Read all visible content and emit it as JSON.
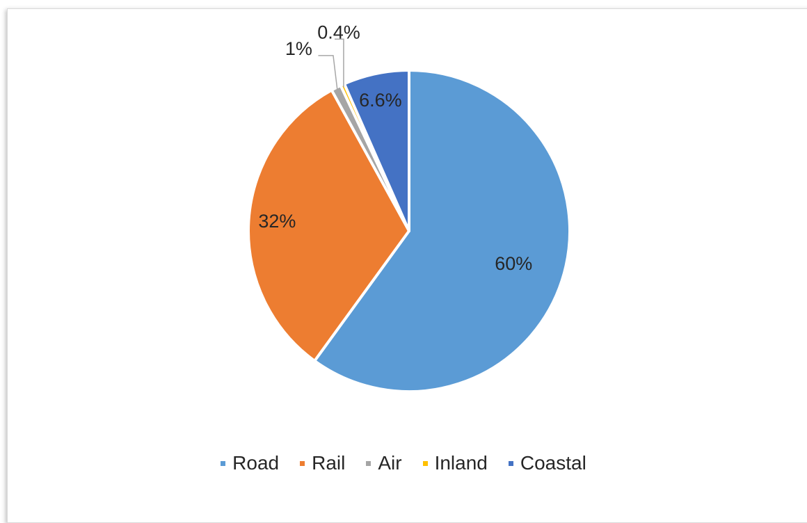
{
  "chart_data": {
    "type": "pie",
    "title": "",
    "legend_position": "bottom",
    "slices": [
      {
        "name": "Road",
        "value": 60,
        "label": "60%",
        "color": "#5b9bd5"
      },
      {
        "name": "Rail",
        "value": 32,
        "label": "32%",
        "color": "#ed7d31"
      },
      {
        "name": "Air",
        "value": 1,
        "label": "1%",
        "color": "#a5a5a5"
      },
      {
        "name": "Inland",
        "value": 0.4,
        "label": "0.4%",
        "color": "#ffc000"
      },
      {
        "name": "Coastal",
        "value": 6.6,
        "label": "6.6%",
        "color": "#4472c4"
      }
    ]
  }
}
